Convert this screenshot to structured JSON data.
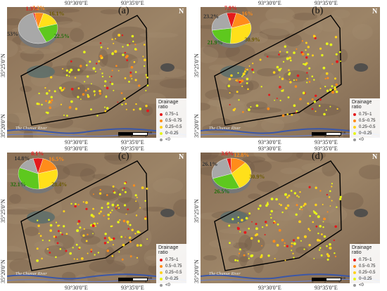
{
  "coords": {
    "lon1": "93°30'0\"E",
    "lon2": "93°35'0\"E",
    "lat1": "35°25'0\"N",
    "lat2": "35°20'0\"N"
  },
  "legend": {
    "title": "Drainage ratio",
    "items": [
      {
        "label": "0.75~1",
        "color": "#e41a1c"
      },
      {
        "label": "0.5~0.75",
        "color": "#ff8c1a"
      },
      {
        "label": "0.25~0.5",
        "color": "#ffd21a"
      },
      {
        "label": "0~0.25",
        "color": "#e6f51a"
      },
      {
        "label": "<0",
        "color": "#9a9a9a"
      }
    ]
  },
  "river_label": "The Chumar River",
  "scale": {
    "t0": "0",
    "t2": "2",
    "t4": "4",
    "unit": "km"
  },
  "north": "N",
  "panels": [
    {
      "label": "(a)",
      "chart_data": {
        "type": "pie",
        "slices": [
          {
            "value": 1.3,
            "label": "1.3%",
            "color": "#e41a1c"
          },
          {
            "value": 7.2,
            "label": "7.2%",
            "color": "#ff8c1a"
          },
          {
            "value": 16.1,
            "label": "16.1%",
            "color": "#ffe01a"
          },
          {
            "value": 22.5,
            "label": "22.5%",
            "color": "#5ec81e"
          },
          {
            "value": 53,
            "label": "53%",
            "color": "#a8a8a8"
          }
        ]
      }
    },
    {
      "label": "(b)",
      "chart_data": {
        "type": "pie",
        "slices": [
          {
            "value": 7.9,
            "label": "7.9%",
            "color": "#e41a1c"
          },
          {
            "value": 16,
            "label": "16%",
            "color": "#ff8c1a"
          },
          {
            "value": 30.9,
            "label": "30.9%",
            "color": "#ffe01a"
          },
          {
            "value": 21.9,
            "label": "21.9%",
            "color": "#5ec81e"
          },
          {
            "value": 23.2,
            "label": "23.2%",
            "color": "#a8a8a8"
          }
        ]
      }
    },
    {
      "label": "(c)",
      "chart_data": {
        "type": "pie",
        "slices": [
          {
            "value": 8.1,
            "label": "8.1%",
            "color": "#e41a1c"
          },
          {
            "value": 16.5,
            "label": "16.5%",
            "color": "#ff8c1a"
          },
          {
            "value": 28.4,
            "label": "28.4%",
            "color": "#ffe01a"
          },
          {
            "value": 32.1,
            "label": "32.1%",
            "color": "#5ec81e"
          },
          {
            "value": 14.8,
            "label": "14.8%",
            "color": "#a8a8a8"
          }
        ]
      }
    },
    {
      "label": "(d)",
      "chart_data": {
        "type": "pie",
        "slices": [
          {
            "value": 3.6,
            "label": "3.6%",
            "color": "#e41a1c"
          },
          {
            "value": 12.8,
            "label": "12.8%",
            "color": "#ff8c1a"
          },
          {
            "value": 30.9,
            "label": "30.9%",
            "color": "#ffe01a"
          },
          {
            "value": 26.5,
            "label": "26.5%",
            "color": "#5ec81e"
          },
          {
            "value": 26.1,
            "label": "26.1%",
            "color": "#a8a8a8"
          }
        ]
      }
    }
  ]
}
